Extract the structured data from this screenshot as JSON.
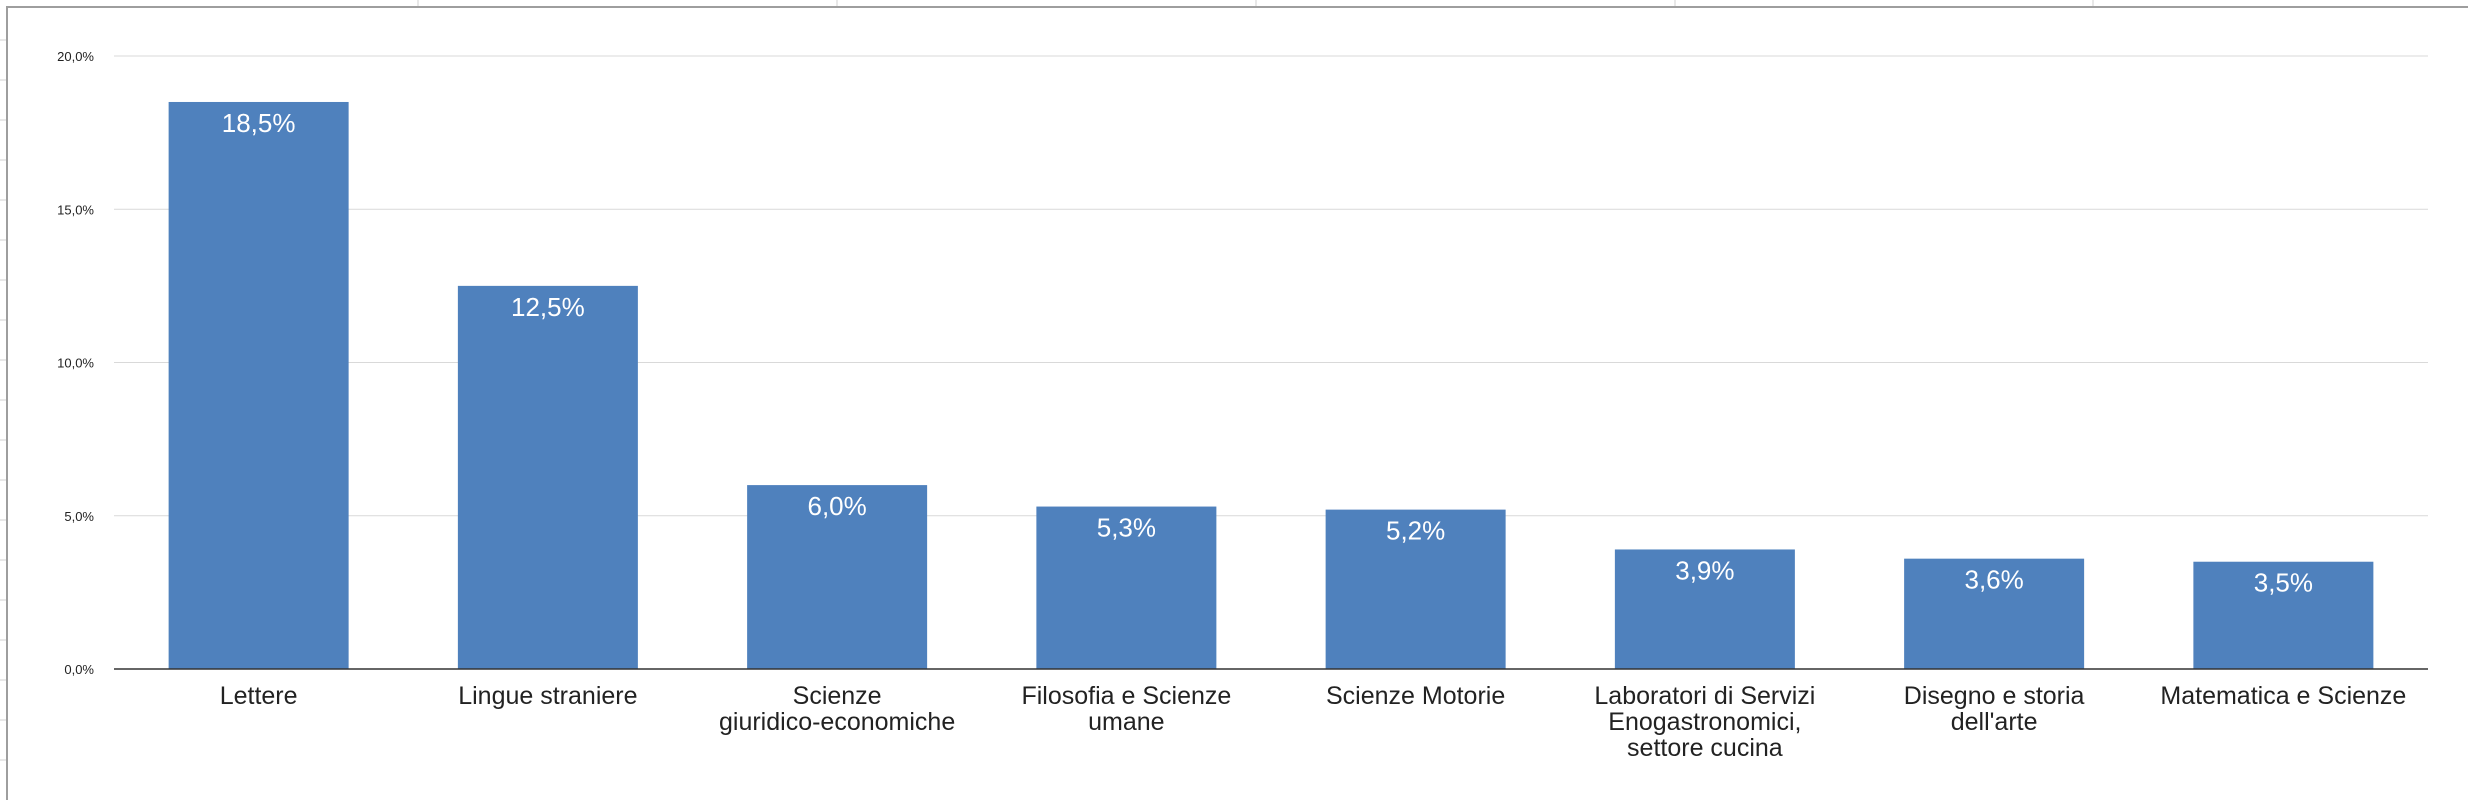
{
  "chart_data": {
    "type": "bar",
    "categories": [
      [
        "Lettere"
      ],
      [
        "Lingue straniere"
      ],
      [
        "Scienze",
        "giuridico-economiche"
      ],
      [
        "Filosofia e Scienze",
        "umane"
      ],
      [
        "Scienze Motorie"
      ],
      [
        "Laboratori di Servizi",
        "Enogastronomici,",
        "settore cucina"
      ],
      [
        "Disegno e storia",
        "dell'arte"
      ],
      [
        "Matematica e Scienze"
      ]
    ],
    "values": [
      18.5,
      12.5,
      6.0,
      5.3,
      5.2,
      3.9,
      3.6,
      3.5
    ],
    "data_labels": [
      "18,5%",
      "12,5%",
      "6,0%",
      "5,3%",
      "5,2%",
      "3,9%",
      "3,6%",
      "3,5%"
    ],
    "y_ticks": [
      0,
      5,
      10,
      15,
      20
    ],
    "y_tick_labels": [
      "0,0%",
      "5,0%",
      "10,0%",
      "15,0%",
      "20,0%"
    ],
    "ylim": [
      0,
      20
    ],
    "title": "",
    "xlabel": "",
    "ylabel": "",
    "grid": true,
    "legend": "none",
    "colors": {
      "bar": "#4f81bd",
      "grid": "#d9d9d9",
      "axis": "#333333",
      "text": "#222222",
      "data_label": "#ffffff"
    }
  }
}
